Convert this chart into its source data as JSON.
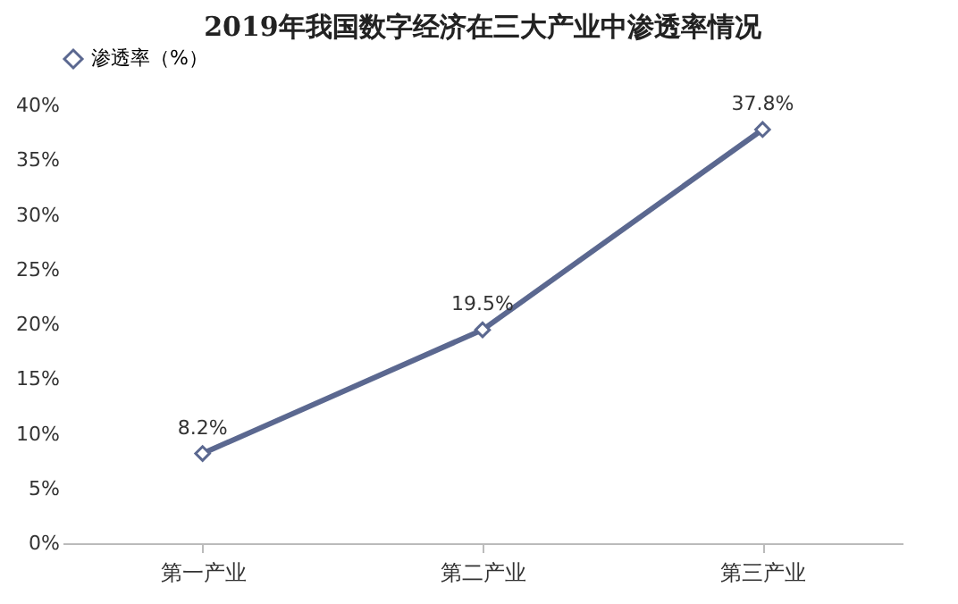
{
  "chart_data": {
    "type": "line",
    "title": "2019年我国数字经济在三大产业中渗透率情况",
    "categories": [
      "第一产业",
      "第二产业",
      "第三产业"
    ],
    "series": [
      {
        "name": "渗透率（%）",
        "color": "#5b6890",
        "values": [
          8.2,
          19.5,
          37.8
        ],
        "value_labels": [
          "8.2%",
          "19.5%",
          "37.8%"
        ]
      }
    ],
    "ylim": [
      0,
      40
    ],
    "yticks": [
      {
        "value": 0,
        "label": "0%"
      },
      {
        "value": 5,
        "label": "5%"
      },
      {
        "value": 10,
        "label": "10%"
      },
      {
        "value": 15,
        "label": "15%"
      },
      {
        "value": 20,
        "label": "20%"
      },
      {
        "value": 25,
        "label": "25%"
      },
      {
        "value": 30,
        "label": "30%"
      },
      {
        "value": 35,
        "label": "35%"
      },
      {
        "value": 40,
        "label": "40%"
      }
    ],
    "grid": false,
    "legend": "top",
    "marker": "diamond",
    "line_style": "solid"
  }
}
